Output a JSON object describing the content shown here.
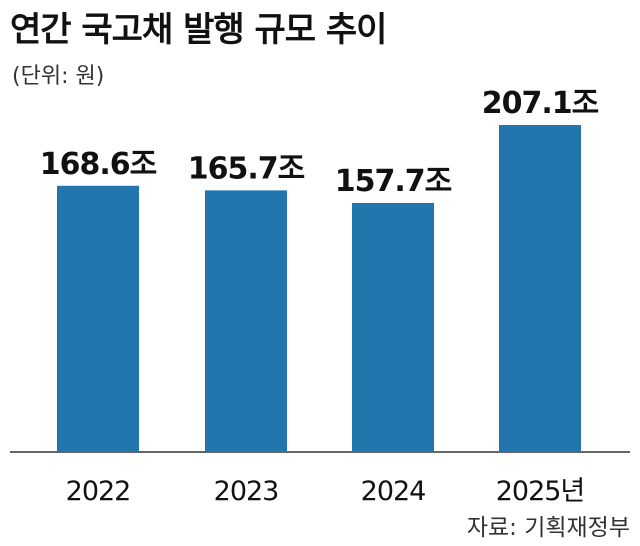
{
  "title": "연간 국고채 발행 규모 추이",
  "unit_note": "(단위: 원)",
  "source": "자료: 기획재정부",
  "colors": {
    "bar": "#2176ae",
    "axis": "#333333",
    "text": "#111111"
  },
  "chart_data": {
    "type": "bar",
    "categories": [
      "2022",
      "2023",
      "2024",
      "2025년"
    ],
    "values": [
      168.6,
      165.7,
      157.7,
      207.1
    ],
    "value_labels": [
      "168.6조",
      "165.7조",
      "157.7조",
      "207.1조"
    ],
    "ylim": [
      0,
      220
    ],
    "grid": false,
    "legend": "none"
  }
}
